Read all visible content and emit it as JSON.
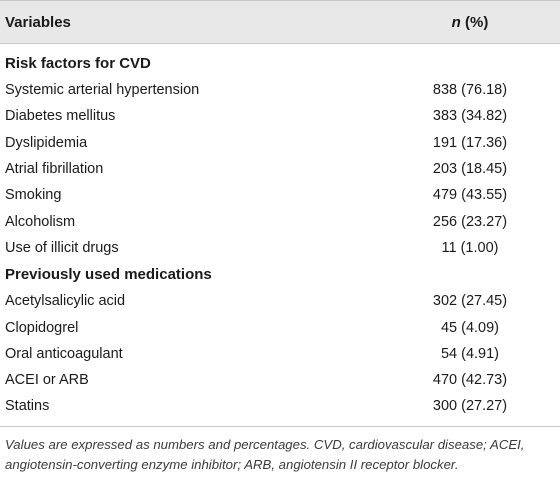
{
  "header": {
    "variables_label": "Variables",
    "n_label": "n",
    "pct_label": " (%)"
  },
  "sections": [
    {
      "title": "Risk factors for CVD",
      "rows": [
        {
          "label": "Systemic arterial hypertension",
          "value": "838 (76.18)"
        },
        {
          "label": "Diabetes mellitus",
          "value": "383 (34.82)"
        },
        {
          "label": "Dyslipidemia",
          "value": "191 (17.36)"
        },
        {
          "label": "Atrial fibrillation",
          "value": "203 (18.45)"
        },
        {
          "label": "Smoking",
          "value": "479 (43.55)"
        },
        {
          "label": "Alcoholism",
          "value": "256 (23.27)"
        },
        {
          "label": "Use of illicit drugs",
          "value": "11 (1.00)"
        }
      ]
    },
    {
      "title": "Previously used medications",
      "rows": [
        {
          "label": "Acetylsalicylic acid",
          "value": "302 (27.45)"
        },
        {
          "label": "Clopidogrel",
          "value": "45 (4.09)"
        },
        {
          "label": "Oral anticoagulant",
          "value": "54 (4.91)"
        },
        {
          "label": "ACEI or ARB",
          "value": "470 (42.73)"
        },
        {
          "label": "Statins",
          "value": "300 (27.27)"
        }
      ]
    }
  ],
  "footnote": "Values are expressed as numbers and percentages. CVD, cardiovascular disease; ACEI, angiotensin-converting enzyme inhibitor; ARB, angiotensin II receptor blocker."
}
